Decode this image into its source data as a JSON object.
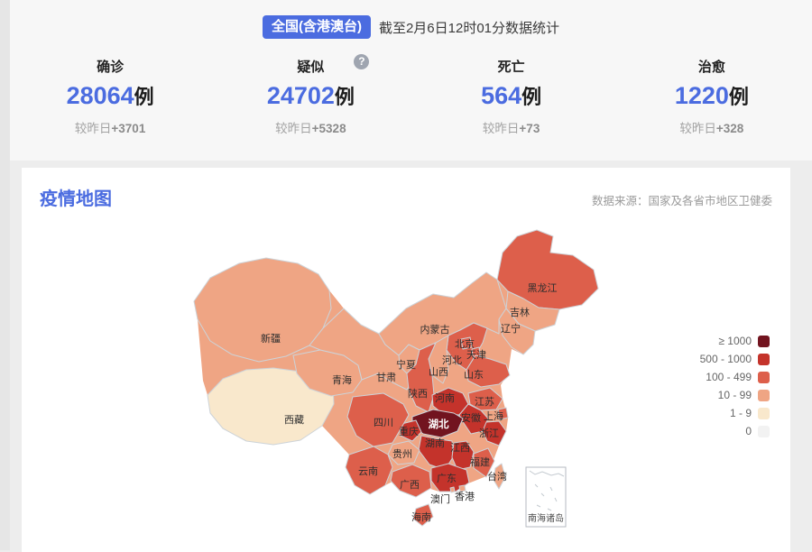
{
  "header": {
    "scope_badge": "全国(含港澳台)",
    "as_of": "截至2月6日12时01分数据统计",
    "stats": [
      {
        "label": "确诊",
        "value": "28064",
        "unit": "例",
        "delta_prefix": "较昨日",
        "delta_value": "+3701"
      },
      {
        "label": "疑似",
        "value": "24702",
        "unit": "例",
        "delta_prefix": "较昨日",
        "delta_value": "+5328"
      },
      {
        "label": "死亡",
        "value": "564",
        "unit": "例",
        "delta_prefix": "较昨日",
        "delta_value": "+73"
      },
      {
        "label": "治愈",
        "value": "1220",
        "unit": "例",
        "delta_prefix": "较昨日",
        "delta_value": "+328"
      }
    ],
    "help_icon": "?"
  },
  "map_section": {
    "title": "疫情地图",
    "source": "数据来源：国家及各省市地区卫健委",
    "inset_label": "南海诸岛",
    "legend": [
      {
        "label": "≥ 1000",
        "color": "#72141f"
      },
      {
        "label": "500 - 1000",
        "color": "#c4332b"
      },
      {
        "label": "100 - 499",
        "color": "#dd5f4b"
      },
      {
        "label": "10 - 99",
        "color": "#efa584"
      },
      {
        "label": "1 - 9",
        "color": "#f9e8cc"
      },
      {
        "label": "0",
        "color": "#f2f2f2"
      }
    ],
    "provinces": [
      {
        "name": "新疆",
        "level": 3
      },
      {
        "name": "西藏",
        "level": 4
      },
      {
        "name": "青海",
        "level": 3
      },
      {
        "name": "甘肃",
        "level": 3
      },
      {
        "name": "内蒙古",
        "level": 3
      },
      {
        "name": "宁夏",
        "level": 3
      },
      {
        "name": "黑龙江",
        "level": 2
      },
      {
        "name": "吉林",
        "level": 3
      },
      {
        "name": "辽宁",
        "level": 3
      },
      {
        "name": "河北",
        "level": 2
      },
      {
        "name": "北京",
        "level": 2
      },
      {
        "name": "天津",
        "level": 2
      },
      {
        "name": "山西",
        "level": 3
      },
      {
        "name": "山东",
        "level": 2
      },
      {
        "name": "陕西",
        "level": 2
      },
      {
        "name": "河南",
        "level": 1
      },
      {
        "name": "江苏",
        "level": 2
      },
      {
        "name": "安徽",
        "level": 1
      },
      {
        "name": "上海",
        "level": 2
      },
      {
        "name": "浙江",
        "level": 1
      },
      {
        "name": "湖北",
        "level": 0,
        "highlight": true
      },
      {
        "name": "湖南",
        "level": 1
      },
      {
        "name": "江西",
        "level": 1
      },
      {
        "name": "重庆",
        "level": 1
      },
      {
        "name": "四川",
        "level": 2
      },
      {
        "name": "贵州",
        "level": 3
      },
      {
        "name": "云南",
        "level": 2
      },
      {
        "name": "广西",
        "level": 2
      },
      {
        "name": "广东",
        "level": 1
      },
      {
        "name": "福建",
        "level": 2
      },
      {
        "name": "台湾",
        "level": 3
      },
      {
        "name": "海南",
        "level": 2
      },
      {
        "name": "香港",
        "level": 3
      },
      {
        "name": "澳门",
        "level": 3
      }
    ]
  }
}
